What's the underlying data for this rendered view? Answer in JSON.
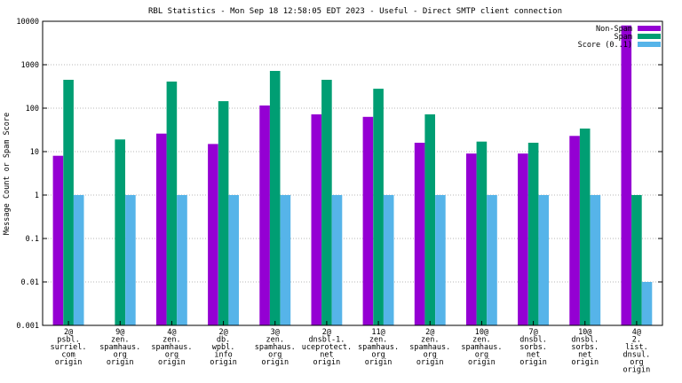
{
  "chart_data": {
    "type": "bar",
    "title": "RBL Statistics - Mon Sep 18 12:58:05 EDT 2023 - Useful - Direct SMTP client connection",
    "ylabel": "Message Count or Spam Score",
    "xlabel": "",
    "yscale": "log",
    "ylim": [
      0.001,
      10000
    ],
    "yticks": [
      "0.001",
      "0.01",
      "0.1",
      "1",
      "10",
      "100",
      "1000",
      "10000"
    ],
    "grid": true,
    "legend_position": "top-right",
    "categories": [
      [
        "2@",
        "psbl.",
        "surriel.",
        "com",
        "origin"
      ],
      [
        "9@",
        "zen.",
        "spamhaus.",
        "org",
        "origin"
      ],
      [
        "4@",
        "zen.",
        "spamhaus.",
        "org",
        "origin"
      ],
      [
        "2@",
        "db.",
        "wpbl.",
        "info",
        "origin"
      ],
      [
        "3@",
        "zen.",
        "spamhaus.",
        "org",
        "origin"
      ],
      [
        "2@",
        "dnsbl-1.",
        "uceprotect.",
        "net",
        "origin"
      ],
      [
        "11@",
        "zen.",
        "spamhaus.",
        "org",
        "origin"
      ],
      [
        "2@",
        "zen.",
        "spamhaus.",
        "org",
        "origin"
      ],
      [
        "10@",
        "zen.",
        "spamhaus.",
        "org",
        "origin"
      ],
      [
        "7@",
        "dnsbl.",
        "sorbs.",
        "net",
        "origin"
      ],
      [
        "10@",
        "dnsbl.",
        "sorbs.",
        "net",
        "origin"
      ],
      [
        "4@",
        "2.",
        "list.",
        "dnsul.",
        "org",
        "origin"
      ]
    ],
    "series": [
      {
        "name": "Non-Spam",
        "color": "#9400d3",
        "values": [
          8,
          null,
          26,
          15,
          115,
          72,
          63,
          16,
          9,
          9,
          23,
          8000
        ]
      },
      {
        "name": "Spam",
        "color": "#009e73",
        "values": [
          450,
          19,
          410,
          145,
          720,
          450,
          280,
          72,
          17,
          16,
          34,
          1
        ]
      },
      {
        "name": "Score (0..1)",
        "color": "#56b4e9",
        "values": [
          1,
          1,
          1,
          1,
          1,
          1,
          1,
          1,
          1,
          1,
          1,
          0.01
        ]
      }
    ]
  }
}
